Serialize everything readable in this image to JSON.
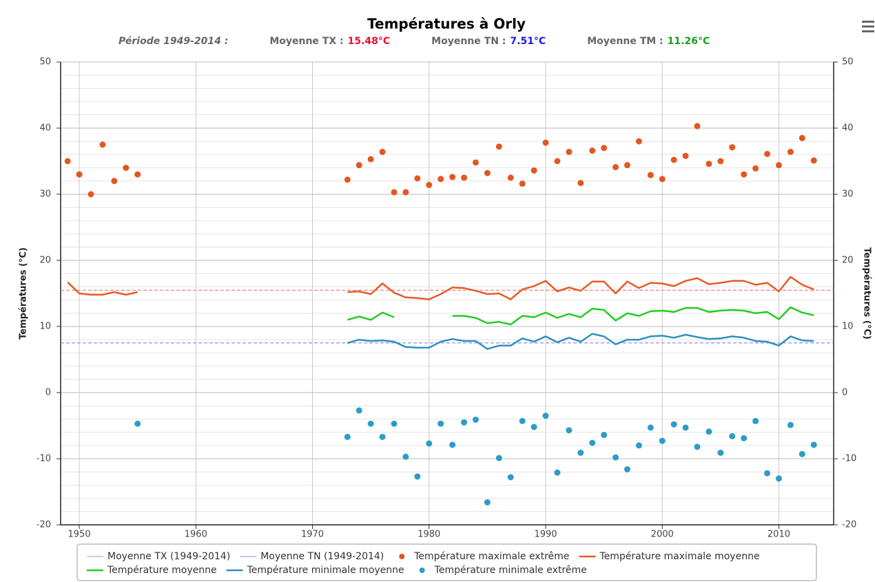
{
  "chart_data": {
    "type": "line",
    "title": "Températures à Orly",
    "period": "Période 1949-2014 :",
    "means": [
      {
        "label": "Moyenne TX :",
        "value": 15.48,
        "value_label": "15.48°C",
        "label_color": "#e8112d",
        "legend": "Moyenne TX (1949-2014)",
        "color": "#f08080"
      },
      {
        "label": "Moyenne TN :",
        "value": 7.51,
        "value_label": "7.51°C",
        "label_color": "#1a1aee",
        "legend": "Moyenne TN (1949-2014)",
        "color": "#8c8cf0"
      },
      {
        "label": "Moyenne TM :",
        "value_label": "11.26°C",
        "label_color": "#1a9e1a"
      }
    ],
    "y_label": "Températures (°C)",
    "y2_label": "Températures (°C)",
    "xlim": [
      1948.4,
      2014.7
    ],
    "xticks": [
      1950,
      1960,
      1970,
      1980,
      1990,
      2000,
      2010
    ],
    "ylim": [
      -20,
      50
    ],
    "yticks": [
      -20,
      -10,
      0,
      10,
      20,
      30,
      40,
      50
    ],
    "y2lim": [
      -20,
      50
    ],
    "y2ticks": [
      -20,
      -10,
      0,
      10,
      20,
      30,
      40,
      50
    ],
    "grid": true,
    "minor_grid": true,
    "legend": "bottom",
    "x": [
      1949,
      1950,
      1951,
      1952,
      1953,
      1954,
      1955,
      1956,
      1957,
      1958,
      1959,
      1960,
      1961,
      1962,
      1963,
      1964,
      1965,
      1966,
      1967,
      1968,
      1969,
      1970,
      1971,
      1972,
      1973,
      1974,
      1975,
      1976,
      1977,
      1978,
      1979,
      1980,
      1981,
      1982,
      1983,
      1984,
      1985,
      1986,
      1987,
      1988,
      1989,
      1990,
      1991,
      1992,
      1993,
      1994,
      1995,
      1996,
      1997,
      1998,
      1999,
      2000,
      2001,
      2002,
      2003,
      2004,
      2005,
      2006,
      2007,
      2008,
      2009,
      2010,
      2011,
      2012,
      2013
    ],
    "series": [
      {
        "name": "Température maximale extrême",
        "kind": "scatter",
        "color": "#e4571c",
        "values": [
          35,
          33,
          30,
          37.5,
          32,
          34,
          33,
          null,
          null,
          null,
          null,
          null,
          null,
          null,
          null,
          null,
          null,
          null,
          null,
          null,
          null,
          null,
          null,
          null,
          32.2,
          34.4,
          35.3,
          36.4,
          30.3,
          30.3,
          32.4,
          31.4,
          32.3,
          32.6,
          32.5,
          34.8,
          33.2,
          37.2,
          32.5,
          31.6,
          33.6,
          37.8,
          35,
          36.4,
          31.7,
          36.6,
          37,
          34.1,
          34.4,
          38,
          32.9,
          32.3,
          35.2,
          35.8,
          40.3,
          34.6,
          35,
          37.1,
          33,
          33.9,
          36.1,
          34.4,
          36.4,
          38.5,
          35.1
        ]
      },
      {
        "name": "Température maximale moyenne",
        "kind": "line",
        "color": "#e85a22",
        "values": [
          16.7,
          15,
          14.8,
          14.8,
          15.2,
          14.8,
          15.2,
          null,
          null,
          null,
          null,
          null,
          null,
          null,
          null,
          null,
          null,
          null,
          null,
          null,
          null,
          null,
          null,
          null,
          15.2,
          15.3,
          14.9,
          16.5,
          15.1,
          14.4,
          14.3,
          14.1,
          14.9,
          15.9,
          15.8,
          15.4,
          14.9,
          15,
          14.1,
          15.6,
          16.1,
          16.9,
          15.3,
          15.9,
          15.4,
          16.8,
          16.8,
          15,
          16.8,
          15.8,
          16.6,
          16.5,
          16.1,
          16.9,
          17.3,
          16.4,
          16.6,
          16.9,
          16.9,
          16.3,
          16.6,
          15.3,
          17.5,
          16.3,
          15.6
        ]
      },
      {
        "name": "Température moyenne",
        "kind": "line",
        "color": "#22cc22",
        "values": [
          null,
          null,
          null,
          null,
          null,
          null,
          null,
          null,
          null,
          null,
          null,
          null,
          null,
          null,
          null,
          null,
          null,
          null,
          null,
          null,
          null,
          null,
          null,
          null,
          11,
          11.5,
          11,
          12.1,
          11.4,
          null,
          null,
          null,
          null,
          11.6,
          11.6,
          11.3,
          10.5,
          10.7,
          10.3,
          11.6,
          11.4,
          12.1,
          11.3,
          11.9,
          11.4,
          12.7,
          12.5,
          10.9,
          12,
          11.6,
          12.3,
          12.4,
          12.2,
          12.8,
          12.8,
          12.2,
          12.4,
          12.5,
          12.4,
          12,
          12.2,
          11.1,
          12.9,
          12.1,
          11.7
        ]
      },
      {
        "name": "Température minimale moyenne",
        "kind": "line",
        "color": "#2f8fbf",
        "values": [
          null,
          null,
          null,
          null,
          null,
          null,
          null,
          null,
          null,
          null,
          null,
          null,
          null,
          null,
          null,
          null,
          null,
          null,
          null,
          null,
          null,
          null,
          null,
          null,
          7.5,
          8,
          7.8,
          7.9,
          7.7,
          6.9,
          6.8,
          6.8,
          7.7,
          8.1,
          7.8,
          7.8,
          6.6,
          7.1,
          7.1,
          8.2,
          7.7,
          8.5,
          7.6,
          8.3,
          7.7,
          8.9,
          8.5,
          7.3,
          8,
          8,
          8.5,
          8.6,
          8.3,
          8.75,
          8.4,
          8.1,
          8.2,
          8.5,
          8.3,
          7.8,
          7.7,
          7.1,
          8.5,
          7.9,
          7.8
        ]
      },
      {
        "name": "Température minimale extrême",
        "kind": "scatter",
        "color": "#2e9bc8",
        "values": [
          null,
          null,
          null,
          null,
          null,
          null,
          -4.7,
          null,
          null,
          null,
          null,
          null,
          null,
          null,
          null,
          null,
          null,
          null,
          null,
          null,
          null,
          null,
          null,
          null,
          -6.7,
          -2.7,
          -4.7,
          -6.7,
          -4.7,
          -9.7,
          -12.7,
          -7.7,
          -4.7,
          -7.9,
          -4.5,
          -4.1,
          -16.6,
          -9.9,
          -12.8,
          -4.3,
          -5.2,
          -3.5,
          -12.1,
          -5.7,
          -9.1,
          -7.6,
          -6.4,
          -9.8,
          -11.6,
          -8,
          -5.3,
          -7.3,
          -4.8,
          -5.3,
          -8.2,
          -5.9,
          -9.1,
          -6.6,
          -6.9,
          -4.3,
          -12.2,
          -13,
          -4.9,
          -9.3,
          -7.9
        ]
      }
    ]
  }
}
